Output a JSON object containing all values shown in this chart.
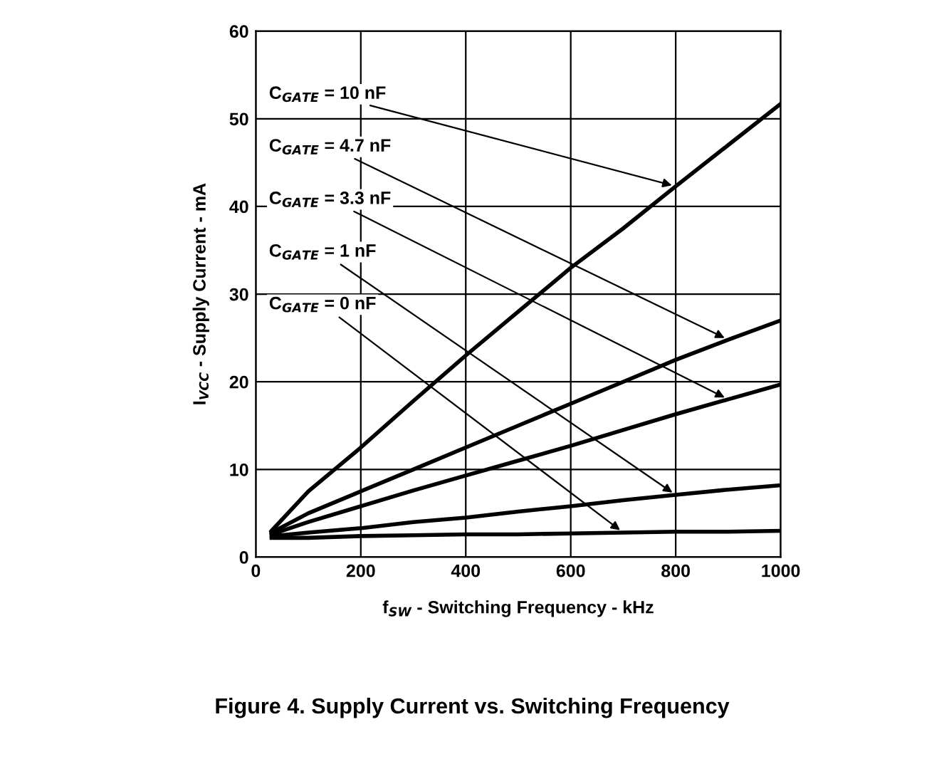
{
  "chart_data": {
    "type": "line",
    "xlabel": "f$_{SW}$ - Switching Frequency - kHz",
    "ylabel": "I$_{VCC}$ - Supply Current - mA",
    "x": [
      30,
      100,
      200,
      300,
      400,
      500,
      600,
      700,
      800,
      900,
      1000
    ],
    "series": [
      {
        "color": "#000000",
        "values": [
          3,
          7.5,
          12.5,
          17.8,
          23,
          28,
          33,
          37.5,
          42.3,
          47,
          51.7
        ]
      },
      {
        "color": "#000000",
        "values": [
          2.8,
          5,
          7.5,
          10,
          12.5,
          15,
          17.5,
          20,
          22.5,
          24.8,
          27
        ]
      },
      {
        "color": "#000000",
        "values": [
          2.6,
          4,
          5.8,
          7.6,
          9.3,
          11,
          12.7,
          14.5,
          16.3,
          18,
          19.7
        ]
      },
      {
        "color": "#000000",
        "values": [
          2.4,
          2.8,
          3.3,
          4,
          4.5,
          5.2,
          5.8,
          6.5,
          7.1,
          7.7,
          8.2
        ]
      },
      {
        "color": "#000000",
        "values": [
          2.2,
          2.2,
          2.4,
          2.5,
          2.6,
          2.6,
          2.7,
          2.8,
          2.9,
          2.9,
          3.0
        ]
      }
    ],
    "xlim": [
      0,
      1000
    ],
    "xticks": [
      0,
      200,
      400,
      600,
      800,
      1000
    ],
    "ylim": [
      0,
      60
    ],
    "yticks": [
      0,
      10,
      20,
      30,
      40,
      50,
      60
    ],
    "grid": true,
    "marker": "none",
    "line_style": "solid",
    "annotations": [
      {
        "text": "C$_{GATE}$ = 10 nF",
        "x": 800,
        "y": 42.3
      },
      {
        "text": "C$_{GATE}$ = 4.7 nF",
        "x": 900,
        "y": 24.8
      },
      {
        "text": "C$_{GATE}$ = 3.3 nF",
        "x": 900,
        "y": 18
      },
      {
        "text": "C$_{GATE}$ = 1 nF",
        "x": 800,
        "y": 7.1
      },
      {
        "text": "C$_{GATE}$ = 0 nF",
        "x": 700,
        "y": 2.8
      },
      "Figure 4. Supply Current vs. Switching Frequency"
    ]
  }
}
